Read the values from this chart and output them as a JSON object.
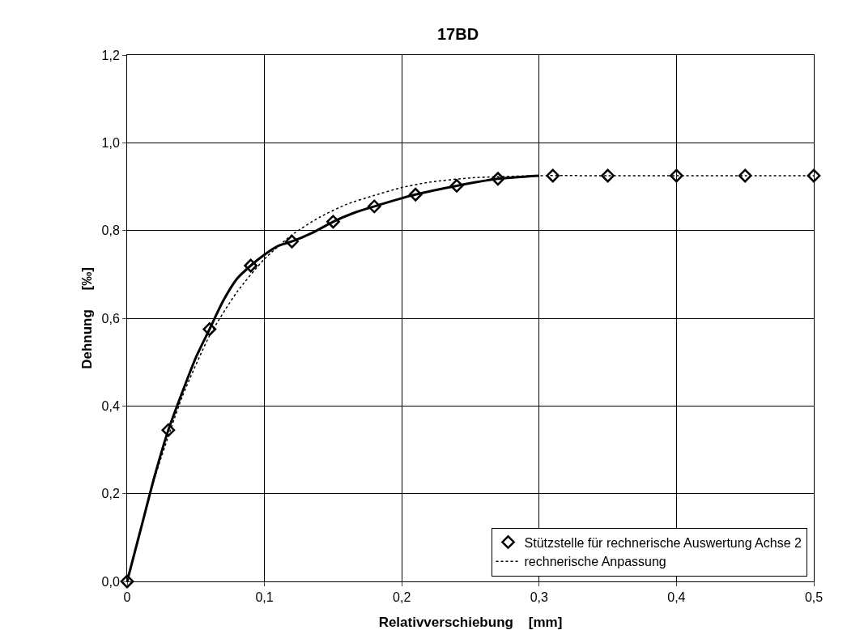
{
  "chart_data": {
    "type": "line",
    "title": "17BD",
    "xlabel": "Relativverschiebung    [mm]",
    "ylabel": "Dehnung     [‰]",
    "xlim": [
      0,
      0.5
    ],
    "ylim": [
      0,
      1.2
    ],
    "xticks": [
      {
        "value": 0,
        "label": "0"
      },
      {
        "value": 0.1,
        "label": "0,1"
      },
      {
        "value": 0.2,
        "label": "0,2"
      },
      {
        "value": 0.3,
        "label": "0,3"
      },
      {
        "value": 0.4,
        "label": "0,4"
      },
      {
        "value": 0.5,
        "label": "0,5"
      }
    ],
    "yticks": [
      {
        "value": 0,
        "label": "0,0"
      },
      {
        "value": 0.2,
        "label": "0,2"
      },
      {
        "value": 0.4,
        "label": "0,4"
      },
      {
        "value": 0.6,
        "label": "0,6"
      },
      {
        "value": 0.8,
        "label": "0,8"
      },
      {
        "value": 1.0,
        "label": "1,0"
      },
      {
        "value": 1.2,
        "label": "1,2"
      }
    ],
    "grid": true,
    "legend": "bottom right",
    "series": [
      {
        "color": "#000000",
        "line_style": "solid",
        "marker": "none",
        "x": [
          0,
          0.01,
          0.02,
          0.03,
          0.04,
          0.05,
          0.06,
          0.07,
          0.08,
          0.09,
          0.1,
          0.11,
          0.12,
          0.135,
          0.15,
          0.165,
          0.18,
          0.21,
          0.24,
          0.27,
          0.3
        ],
        "values": [
          0,
          0.12,
          0.24,
          0.345,
          0.43,
          0.51,
          0.575,
          0.64,
          0.69,
          0.72,
          0.745,
          0.765,
          0.775,
          0.795,
          0.82,
          0.84,
          0.855,
          0.882,
          0.902,
          0.918,
          0.925
        ]
      },
      {
        "name": "rechnerische Anpassung",
        "color": "#000000",
        "line_style": "dotted",
        "marker": "none",
        "x": [
          0,
          0.02,
          0.04,
          0.06,
          0.08,
          0.1,
          0.12,
          0.14,
          0.16,
          0.18,
          0.2,
          0.22,
          0.25,
          0.3,
          0.35,
          0.4,
          0.45,
          0.5
        ],
        "values": [
          0,
          0.235,
          0.42,
          0.56,
          0.66,
          0.735,
          0.79,
          0.83,
          0.86,
          0.88,
          0.898,
          0.91,
          0.92,
          0.925,
          0.925,
          0.925,
          0.925,
          0.925
        ]
      },
      {
        "type": "scatter",
        "name": "Stützstelle für rechnerische Auswertung Achse 2",
        "color": "#000000",
        "marker": "diamond",
        "x": [
          0,
          0.03,
          0.06,
          0.09,
          0.12,
          0.15,
          0.18,
          0.21,
          0.24,
          0.27,
          0.31,
          0.35,
          0.4,
          0.45,
          0.5
        ],
        "values": [
          0,
          0.345,
          0.575,
          0.72,
          0.775,
          0.82,
          0.855,
          0.882,
          0.902,
          0.918,
          0.925,
          0.925,
          0.925,
          0.925,
          0.925
        ]
      }
    ]
  }
}
